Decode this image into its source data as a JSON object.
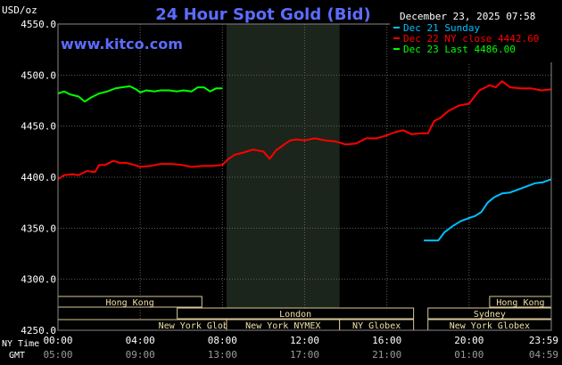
{
  "chart_data": {
    "type": "line",
    "title": "24 Hour Spot Gold (Bid)",
    "watermark": "www.kitco.com",
    "timestamp": "December 23, 2025 07:58",
    "ylabel": "USD/oz",
    "ylim": [
      4250,
      4550
    ],
    "yticks": [
      "4550.0",
      "4500.0",
      "4450.0",
      "4400.0",
      "4350.0",
      "4300.0",
      "4250.0"
    ],
    "xlim": [
      0,
      24
    ],
    "x_row_labels": {
      "ny": "NY Time",
      "gmt": "GMT"
    },
    "xticks_ny": [
      "00:00",
      "04:00",
      "08:00",
      "12:00",
      "16:00",
      "20:00",
      "23:59"
    ],
    "xticks_gmt": [
      "05:00",
      "09:00",
      "13:00",
      "17:00",
      "21:00",
      "01:00",
      "04:59"
    ],
    "shaded_session": [
      8.2,
      13.7
    ],
    "grid": true,
    "legend": [
      {
        "label": "Dec 21 Sunday",
        "color": "#00bfff"
      },
      {
        "label": "Dec 22 NY close 4442.60",
        "color": "#ff0000"
      },
      {
        "label": "Dec 23 Last 4486.00",
        "color": "#00ff00"
      }
    ],
    "series": [
      {
        "name": "Dec 21 Sunday",
        "color": "#00bfff",
        "x": [
          17.8,
          18.5,
          18.8,
          19.2,
          19.6,
          20.0,
          20.3,
          20.6,
          20.9,
          21.2,
          21.6,
          22.0,
          22.4,
          22.8,
          23.2,
          23.6,
          24.0
        ],
        "y": [
          4338,
          4338,
          4346,
          4352,
          4357,
          4360,
          4362,
          4366,
          4375,
          4380,
          4384,
          4385,
          4388,
          4391,
          4394,
          4395,
          4398
        ]
      },
      {
        "name": "Dec 22 NY close 4442.60",
        "color": "#ff0000",
        "x": [
          0.0,
          0.3,
          0.7,
          1.0,
          1.4,
          1.8,
          2.0,
          2.3,
          2.7,
          3.0,
          3.3,
          3.7,
          4.0,
          4.5,
          5.0,
          5.5,
          6.0,
          6.5,
          7.0,
          7.5,
          8.0,
          8.3,
          8.6,
          9.0,
          9.5,
          10.0,
          10.3,
          10.6,
          11.0,
          11.3,
          11.6,
          12.0,
          12.5,
          13.0,
          13.5,
          14.0,
          14.5,
          15.0,
          15.5,
          16.0,
          16.4,
          16.8,
          17.2,
          17.6,
          18.0,
          18.3,
          18.6,
          19.0,
          19.5,
          20.0,
          20.5,
          21.0,
          21.3,
          21.6,
          22.0,
          22.5,
          23.0,
          23.5,
          24.0
        ],
        "y": [
          4398,
          4402,
          4403,
          4402,
          4406,
          4405,
          4412,
          4412,
          4416,
          4414,
          4414,
          4412,
          4410,
          4411,
          4413,
          4413,
          4412,
          4410,
          4411,
          4411,
          4412,
          4418,
          4422,
          4424,
          4427,
          4425,
          4418,
          4426,
          4432,
          4436,
          4437,
          4436,
          4438,
          4436,
          4435,
          4432,
          4433,
          4438,
          4438,
          4441,
          4444,
          4446,
          4442,
          4443,
          4443,
          4455,
          4458,
          4465,
          4470,
          4472,
          4485,
          4490,
          4488,
          4494,
          4488,
          4487,
          4487,
          4485,
          4486
        ]
      },
      {
        "name": "Dec 23 Last 4486.00",
        "color": "#00ff00",
        "x": [
          0.0,
          0.3,
          0.6,
          1.0,
          1.3,
          1.6,
          2.0,
          2.4,
          2.8,
          3.1,
          3.5,
          3.8,
          4.0,
          4.3,
          4.7,
          5.0,
          5.4,
          5.8,
          6.1,
          6.5,
          6.8,
          7.1,
          7.4,
          7.7,
          8.0
        ],
        "y": [
          4482,
          4484,
          4481,
          4479,
          4474,
          4478,
          4482,
          4484,
          4487,
          4488,
          4489,
          4486,
          4483,
          4485,
          4484,
          4485,
          4485,
          4484,
          4485,
          4484,
          4488,
          4488,
          4484,
          4487,
          4487
        ]
      }
    ],
    "market_sessions": [
      {
        "label": "Hong Kong",
        "start": 0.0,
        "end": 7.0,
        "row": 1
      },
      {
        "label": "Hong Kong",
        "start": 21.0,
        "end": 24.0,
        "row": 1
      },
      {
        "label": "London",
        "start": 5.8,
        "end": 17.3,
        "row": 2
      },
      {
        "label": "Sydney",
        "start": 18.0,
        "end": 24.0,
        "row": 2
      },
      {
        "label": "New York Globex",
        "start": 0.0,
        "end": 13.7,
        "row": 3
      },
      {
        "label": "New York NYMEX",
        "start": 8.2,
        "end": 13.7,
        "row": 3
      },
      {
        "label": "NY Globex",
        "start": 13.7,
        "end": 17.3,
        "row": 3
      },
      {
        "label": "New York Globex",
        "start": 18.0,
        "end": 24.0,
        "row": 3
      }
    ]
  }
}
